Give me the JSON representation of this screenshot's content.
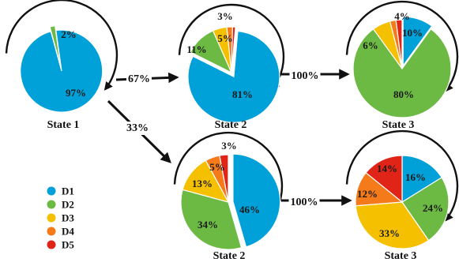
{
  "palette": {
    "D1": "#00A0D8",
    "D2": "#6CB944",
    "D3": "#F5C000",
    "D4": "#F47A1A",
    "D5": "#E02418"
  },
  "legend": [
    {
      "key": "D1",
      "label": "D1"
    },
    {
      "key": "D2",
      "label": "D2"
    },
    {
      "key": "D3",
      "label": "D3"
    },
    {
      "key": "D4",
      "label": "D4"
    },
    {
      "key": "D5",
      "label": "D5"
    }
  ],
  "states": [
    {
      "id": "s1",
      "label": "State 1",
      "self_loop": true,
      "slices": [
        {
          "key": "D1",
          "value": 97,
          "label": "97%"
        },
        {
          "key": "D2",
          "value": 2,
          "label": "2%"
        }
      ]
    },
    {
      "id": "s2a",
      "label": "State 2",
      "self_loop": true,
      "slices": [
        {
          "key": "D1",
          "value": 81,
          "label": "81%"
        },
        {
          "key": "D2",
          "value": 11,
          "label": "11%"
        },
        {
          "key": "D3",
          "value": 5,
          "label": "5%"
        },
        {
          "key": "D4",
          "value": 2,
          "label": ""
        },
        {
          "key": "D5",
          "value": 1,
          "label": "3%"
        }
      ]
    },
    {
      "id": "s3a",
      "label": "State 3",
      "self_loop": true,
      "slices": [
        {
          "key": "D1",
          "value": 10,
          "label": "10%"
        },
        {
          "key": "D2",
          "value": 80,
          "label": "80%"
        },
        {
          "key": "D3",
          "value": 6,
          "label": "6%"
        },
        {
          "key": "D4",
          "value": 2,
          "label": ""
        },
        {
          "key": "D5",
          "value": 2,
          "label": "4%"
        }
      ]
    },
    {
      "id": "s2b",
      "label": "State 2",
      "self_loop": true,
      "slices": [
        {
          "key": "D1",
          "value": 46,
          "label": "46%"
        },
        {
          "key": "D2",
          "value": 34,
          "label": "34%"
        },
        {
          "key": "D3",
          "value": 13,
          "label": "13%"
        },
        {
          "key": "D4",
          "value": 5,
          "label": "5%"
        },
        {
          "key": "D5",
          "value": 3,
          "label": "3%"
        }
      ]
    },
    {
      "id": "s3b",
      "label": "State 3",
      "self_loop": true,
      "slices": [
        {
          "key": "D1",
          "value": 16,
          "label": "16%"
        },
        {
          "key": "D2",
          "value": 24,
          "label": "24%"
        },
        {
          "key": "D3",
          "value": 33,
          "label": "33%"
        },
        {
          "key": "D4",
          "value": 12,
          "label": "12%"
        },
        {
          "key": "D5",
          "value": 14,
          "label": "14%"
        }
      ]
    }
  ],
  "transitions": [
    {
      "from": "s1",
      "to": "s2a",
      "label": "67%"
    },
    {
      "from": "s1",
      "to": "s2b",
      "label": "33%"
    },
    {
      "from": "s2a",
      "to": "s3a",
      "label": "100%"
    },
    {
      "from": "s2b",
      "to": "s3b",
      "label": "100%"
    }
  ]
}
